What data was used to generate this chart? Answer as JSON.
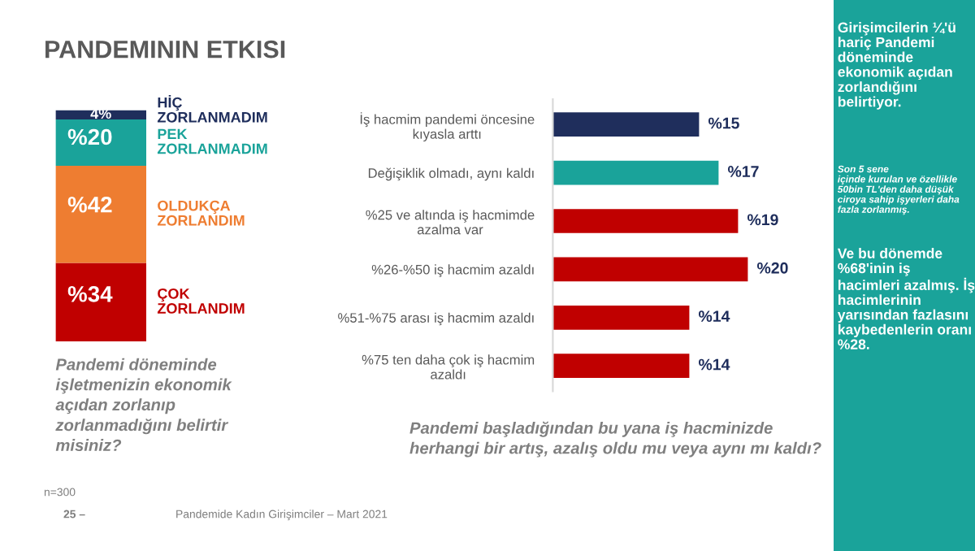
{
  "chart_data": [
    {
      "type": "bar",
      "stacked": true,
      "title": "PANDEMININ ETKISI",
      "categories": [
        null
      ],
      "series": [
        {
          "name": "ÇOK\nZORLANDIM",
          "color": "#c00000",
          "values": [
            34
          ],
          "value_labels": [
            "%34"
          ]
        },
        {
          "name": "OLDUKÇA\nZORLANDIM",
          "color": "#ee7d31",
          "values": [
            42
          ],
          "value_labels": [
            "%42"
          ]
        },
        {
          "name": "PEK\nZORLANMADIM",
          "color": "#1aa39a",
          "values": [
            20
          ],
          "value_labels": [
            "%20"
          ]
        },
        {
          "name": "HİÇ\nZORLANMADIM",
          "color": "#1f2e5c",
          "values": [
            4
          ],
          "value_labels": [
            "4%"
          ]
        }
      ],
      "annotations": [
        "Pandemi döneminde\nişletmenizin ekonomik\naçıdan zorlanıp\nzorlanmadığını belirtir\nmisiniz?",
        "n=300",
        "25 –",
        "Pandemide Kadın Girişimciler – Mart 2021"
      ]
    },
    {
      "type": "bar",
      "orientation": "horizontal",
      "categories": [
        "İş hacmim pandemi öncesine\nkıyasla arttı",
        "Değişiklik olmadı, aynı kaldı",
        "%25 ve altında iş hacmimde\nazalma var",
        "%26-%50 iş hacmim azaldı",
        "%51-%75 arası iş hacmim azaldı",
        "%75 ten daha çok iş hacmim\nazaldı"
      ],
      "values": [
        15,
        17,
        19,
        20,
        14,
        14
      ],
      "colors": [
        "#1f2e5c",
        "#1aa39a",
        "#c00000",
        "#c00000",
        "#c00000",
        "#c00000"
      ],
      "value_labels": [
        "%15",
        "%17",
        "%19",
        "%20",
        "%14",
        "%14"
      ],
      "annotations": [
        "Pandemi başladığından bu yana iş hacminizde\nherhangi bir artış, azalış oldu mu veya aynı mı kaldı?"
      ]
    },
    {
      "type": "other",
      "color": "#1aa39a",
      "annotations": [
        "Girişimcilerin ¼'ü\nhariç Pandemi\ndöneminde\nekonomik açıdan\nzorlandığını\nbelirtiyor.",
        "Son 5 sene\niçinde kurulan ve özellikle\n50bin TL'den daha düşük\nciroya sahip işyerleri daha\nfazla zorlanmış.",
        "Ve bu dönemde\n%68'inin iş\nhacimleri azalmış. İş\nhacimlerinin\nyarısından fazlasını\nkaybedenlerin oranı\n%28."
      ]
    }
  ]
}
